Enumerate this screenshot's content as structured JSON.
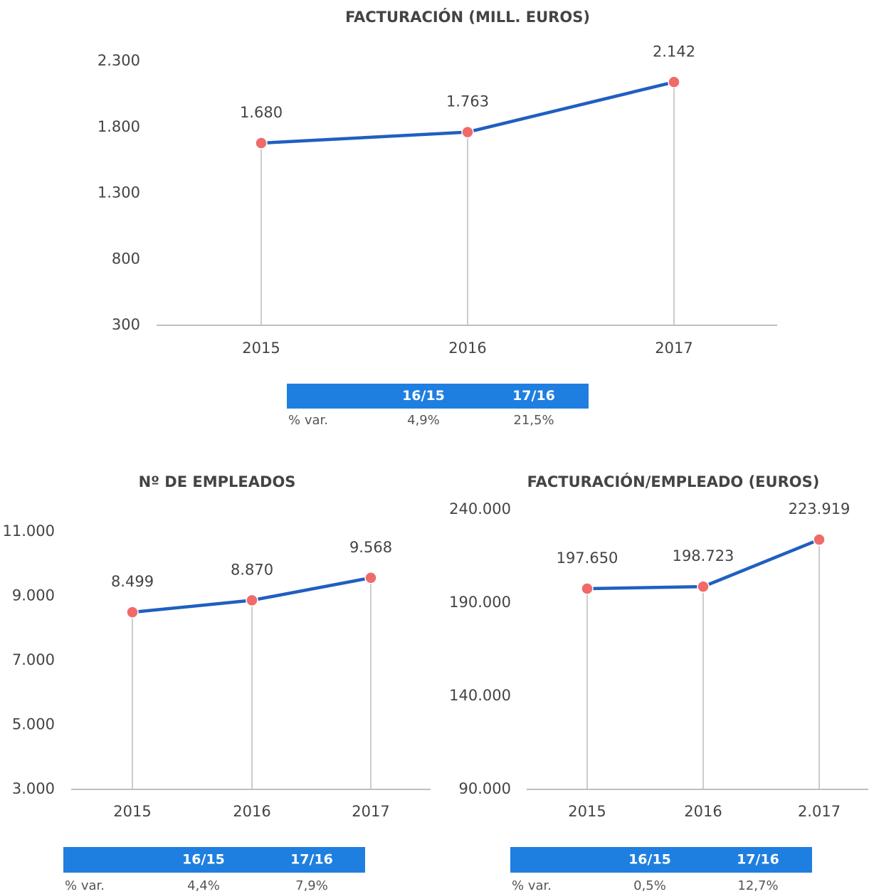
{
  "chart_data": [
    {
      "type": "line",
      "title": "FACTURACIÓN (MILL. EUROS)",
      "categories": [
        "2015",
        "2016",
        "2017"
      ],
      "series": [
        {
          "color": "#1f5fc0",
          "marker_color": "#f06a6a",
          "values": [
            1680,
            1763,
            2142
          ],
          "value_labels": [
            "1.680",
            "1.763",
            "2.142"
          ]
        }
      ],
      "ylim": [
        300,
        2300
      ],
      "yticks": [
        300,
        800,
        {
          "value": 1300,
          "label": "1.300"
        },
        {
          "value": 1800,
          "label": "1.800"
        },
        {
          "value": 2300,
          "label": "2.300"
        }
      ],
      "table": {
        "header": [
          "16/15",
          "17/16"
        ],
        "row_label": "% var.",
        "cells": [
          "4,9%",
          "21,5%"
        ]
      }
    },
    {
      "type": "line",
      "title": "Nº DE EMPLEADOS",
      "categories": [
        "2015",
        "2016",
        "2017"
      ],
      "series": [
        {
          "color": "#1f5fc0",
          "marker_color": "#f06a6a",
          "values": [
            8499,
            8870,
            9568
          ],
          "value_labels": [
            "8.499",
            "8.870",
            "9.568"
          ]
        }
      ],
      "ylim": [
        3000,
        11000
      ],
      "yticks": [
        {
          "value": 3000,
          "label": "3.000"
        },
        {
          "value": 5000,
          "label": "5.000"
        },
        {
          "value": 7000,
          "label": "7.000"
        },
        {
          "value": 9000,
          "label": "9.000"
        },
        {
          "value": 11000,
          "label": "11.000"
        }
      ],
      "table": {
        "header": [
          "16/15",
          "17/16"
        ],
        "row_label": "% var.",
        "cells": [
          "4,4%",
          "7,9%"
        ]
      }
    },
    {
      "type": "line",
      "title": "FACTURACIÓN/EMPLEADO (EUROS)",
      "categories": [
        "2015",
        "2016",
        "2.017"
      ],
      "series": [
        {
          "color": "#1f5fc0",
          "marker_color": "#f06a6a",
          "values": [
            197650,
            198723,
            223919
          ],
          "value_labels": [
            "197.650",
            "198.723",
            "223.919"
          ]
        }
      ],
      "ylim": [
        90000,
        240000
      ],
      "yticks": [
        {
          "value": 90000,
          "label": "90.000"
        },
        {
          "value": 140000,
          "label": "140.000"
        },
        {
          "value": 190000,
          "label": "190.000"
        },
        {
          "value": 240000,
          "label": "240.000"
        }
      ],
      "table": {
        "header": [
          "16/15",
          "17/16"
        ],
        "row_label": "% var.",
        "cells": [
          "0,5%",
          "12,7%"
        ]
      }
    }
  ]
}
